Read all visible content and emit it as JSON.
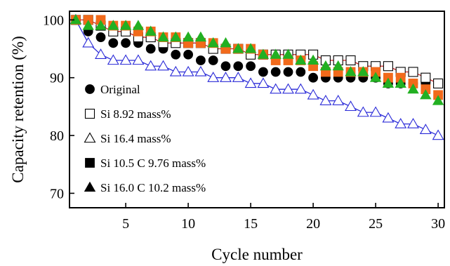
{
  "chart_data": {
    "type": "line",
    "title": "",
    "xlabel": "Cycle number",
    "ylabel": "Capacity retention (%)",
    "xlim": [
      0.5,
      30.5
    ],
    "ylim": [
      67.5,
      101.5
    ],
    "xticks": [
      5,
      10,
      15,
      20,
      25,
      30
    ],
    "yticks": [
      70,
      80,
      90,
      100
    ],
    "grid": false,
    "legend_position": "bottom-left",
    "x": [
      1,
      2,
      3,
      4,
      5,
      6,
      7,
      8,
      9,
      10,
      11,
      12,
      13,
      14,
      15,
      16,
      17,
      18,
      19,
      20,
      21,
      22,
      23,
      24,
      25,
      26,
      27,
      28,
      29,
      30
    ],
    "series": [
      {
        "name": "Original",
        "marker": "filled-circle",
        "marker_color": "#000000",
        "line_color": "#000000",
        "show_line": false,
        "values": [
          100,
          98,
          97,
          96,
          96,
          96,
          95,
          95,
          94,
          94,
          93,
          93,
          92,
          92,
          92,
          91,
          91,
          91,
          91,
          90,
          90,
          90,
          90,
          90,
          90,
          89,
          89,
          89,
          89,
          89
        ]
      },
      {
        "name": "Si 8.92 mass%",
        "marker": "open-square",
        "marker_color": "#000000",
        "line_color": "#cc2020",
        "show_line": true,
        "values": [
          100,
          100,
          99,
          98,
          98,
          97,
          97,
          96,
          96,
          96,
          96,
          95,
          95,
          95,
          94,
          94,
          94,
          94,
          94,
          94,
          93,
          93,
          93,
          92,
          92,
          92,
          91,
          91,
          90,
          89
        ]
      },
      {
        "name": "Si 16.4 mass%",
        "marker": "open-triangle",
        "marker_color": "#2a2ad8",
        "line_color": "#2a2ad8",
        "show_line": true,
        "values": [
          100,
          96,
          94,
          93,
          93,
          93,
          92,
          92,
          91,
          91,
          91,
          90,
          90,
          90,
          89,
          89,
          88,
          88,
          88,
          87,
          86,
          86,
          85,
          84,
          84,
          83,
          82,
          82,
          81,
          80
        ]
      },
      {
        "name": "Si 10.5 C 9.76 mass%",
        "marker": "filled-square",
        "marker_color": "#f26a1b",
        "line_color": "#f26a1b",
        "show_line": false,
        "values": [
          100,
          100,
          100,
          99,
          99,
          98,
          98,
          97,
          97,
          96,
          96,
          96,
          95,
          95,
          95,
          94,
          93,
          93,
          93,
          92,
          91,
          91,
          91,
          91,
          91,
          90,
          90,
          89,
          88,
          87
        ]
      },
      {
        "name": "Si 16.0 C 10.2 mass%",
        "marker": "filled-triangle",
        "marker_color": "#22b022",
        "line_color": "#22b022",
        "show_line": false,
        "values": [
          100,
          99,
          99,
          99,
          99,
          99,
          98,
          97,
          97,
          97,
          97,
          96,
          96,
          95,
          95,
          94,
          94,
          94,
          93,
          93,
          92,
          92,
          91,
          91,
          90,
          89,
          89,
          88,
          87,
          86
        ]
      }
    ]
  }
}
